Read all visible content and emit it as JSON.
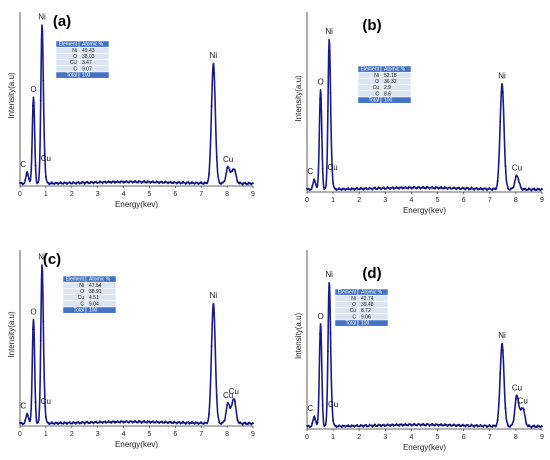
{
  "chart_data": [
    {
      "type": "line",
      "panel_label": "(a)",
      "xlabel": "Energy(kev)",
      "ylabel": "Intensity(a.u)",
      "xlim": [
        0,
        9
      ],
      "xticks": [
        0,
        1,
        2,
        3,
        4,
        5,
        6,
        7,
        8,
        9
      ],
      "peaks": [
        {
          "energy": 0.28,
          "height": 0.07,
          "label": "C"
        },
        {
          "energy": 0.52,
          "height": 0.52,
          "label": "O"
        },
        {
          "energy": 0.85,
          "height": 0.93,
          "label": "Ni"
        },
        {
          "energy": 0.93,
          "height": 0.14,
          "label": ""
        },
        {
          "energy": 7.47,
          "height": 0.72,
          "label": "Ni"
        },
        {
          "energy": 8.04,
          "height": 0.1,
          "label": "Cu"
        },
        {
          "energy": 8.26,
          "height": 0.09,
          "label": ""
        }
      ],
      "extra_labels": [
        {
          "energy": 1.0,
          "height": 0.12,
          "label": "Cu"
        }
      ],
      "table": {
        "header": [
          "Element",
          "Atomic %"
        ],
        "rows": [
          [
            "Ni",
            "49.43"
          ],
          [
            "O",
            "38.03"
          ],
          [
            "CU",
            "3.47"
          ],
          [
            "C",
            "9.07"
          ]
        ],
        "total": [
          "Total",
          "100"
        ]
      }
    },
    {
      "type": "line",
      "panel_label": "(b)",
      "xlabel": "Energy(kev)",
      "ylabel": "Intensity(a.u)",
      "xlim": [
        0,
        9
      ],
      "xticks": [
        0,
        1,
        2,
        3,
        4,
        5,
        6,
        7,
        8,
        9
      ],
      "peaks": [
        {
          "energy": 0.28,
          "height": 0.06,
          "label": "C"
        },
        {
          "energy": 0.52,
          "height": 0.58,
          "label": "O"
        },
        {
          "energy": 0.85,
          "height": 0.85,
          "label": "Ni"
        },
        {
          "energy": 0.93,
          "height": 0.12,
          "label": ""
        },
        {
          "energy": 7.47,
          "height": 0.61,
          "label": "Ni"
        },
        {
          "energy": 8.04,
          "height": 0.08,
          "label": "Cu"
        }
      ],
      "extra_labels": [
        {
          "energy": 0.98,
          "height": 0.1,
          "label": "Cu"
        }
      ],
      "table": {
        "header": [
          "Element",
          "Atomic %"
        ],
        "rows": [
          [
            "Ni",
            "52.18"
          ],
          [
            "O",
            "36.32"
          ],
          [
            "Cu",
            "2.9"
          ],
          [
            "C",
            "8.6"
          ]
        ],
        "total": [
          "Total",
          "100"
        ]
      }
    },
    {
      "type": "line",
      "panel_label": "(c)",
      "xlabel": "Energy(kev)",
      "ylabel": "Intensity(a.u)",
      "xlim": [
        0,
        9
      ],
      "xticks": [
        0,
        1,
        2,
        3,
        4,
        5,
        6,
        7,
        8,
        9
      ],
      "peaks": [
        {
          "energy": 0.28,
          "height": 0.06,
          "label": "C"
        },
        {
          "energy": 0.52,
          "height": 0.62,
          "label": "O"
        },
        {
          "energy": 0.85,
          "height": 0.92,
          "label": "Ni"
        },
        {
          "energy": 0.93,
          "height": 0.13,
          "label": ""
        },
        {
          "energy": 7.47,
          "height": 0.71,
          "label": "Ni"
        },
        {
          "energy": 8.04,
          "height": 0.12,
          "label": "Cu"
        },
        {
          "energy": 8.26,
          "height": 0.15,
          "label": "Cu"
        }
      ],
      "extra_labels": [
        {
          "energy": 1.0,
          "height": 0.1,
          "label": "Cu"
        }
      ],
      "table": {
        "header": [
          "Element",
          "Atomic %"
        ],
        "rows": [
          [
            "Ni",
            "47.54"
          ],
          [
            "O",
            "38.91"
          ],
          [
            "Cu",
            "4.51"
          ],
          [
            "C",
            "9.04"
          ]
        ],
        "total": [
          "Total",
          "100"
        ]
      }
    },
    {
      "type": "line",
      "panel_label": "(d)",
      "xlabel": "Energy(kev)",
      "ylabel": "Intensity(a.u)",
      "xlim": [
        0,
        9
      ],
      "xticks": [
        0,
        1,
        2,
        3,
        4,
        5,
        6,
        7,
        8,
        9
      ],
      "peaks": [
        {
          "energy": 0.28,
          "height": 0.06,
          "label": "C"
        },
        {
          "energy": 0.52,
          "height": 0.6,
          "label": "O"
        },
        {
          "energy": 0.85,
          "height": 0.82,
          "label": "Ni"
        },
        {
          "energy": 0.93,
          "height": 0.12,
          "label": ""
        },
        {
          "energy": 7.47,
          "height": 0.48,
          "label": "Ni"
        },
        {
          "energy": 8.04,
          "height": 0.18,
          "label": "Cu"
        },
        {
          "energy": 8.26,
          "height": 0.11,
          "label": "Cu"
        }
      ],
      "extra_labels": [
        {
          "energy": 1.0,
          "height": 0.1,
          "label": "Cu"
        }
      ],
      "table": {
        "header": [
          "Element",
          "Atomic %"
        ],
        "rows": [
          [
            "Ni",
            "42.74"
          ],
          [
            "O",
            "39.48"
          ],
          [
            "Cu",
            "8.72"
          ],
          [
            "C",
            "9.06"
          ]
        ],
        "total": [
          "Total",
          "100"
        ]
      }
    }
  ],
  "colors": {
    "spectrum": "#1a1a8c",
    "marker": "#0a0a6e",
    "table_header": "#4472c4",
    "table_row": "#dce6f2",
    "table_total": "#4472c4"
  }
}
